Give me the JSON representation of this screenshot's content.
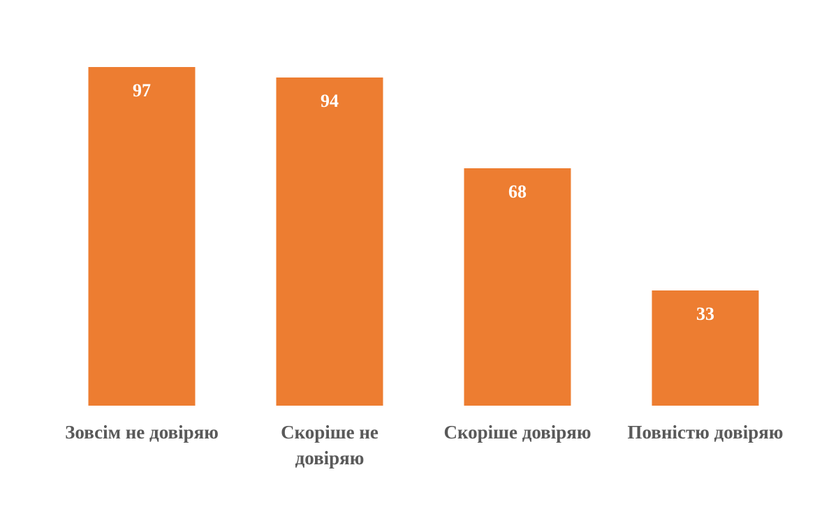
{
  "chart_data": {
    "type": "bar",
    "categories": [
      [
        "Зовсім не довіряю"
      ],
      [
        "Скоріше не",
        "довіряю"
      ],
      [
        "Скоріше довіряю"
      ],
      [
        "Повністю довіряю"
      ]
    ],
    "values": [
      97,
      94,
      68,
      33
    ],
    "value_labels": [
      "97",
      "94",
      "68",
      "33"
    ],
    "ylim": [
      0,
      100
    ],
    "grid": false,
    "legend": "none",
    "bar_color": "#ED7D31",
    "value_label_color": "#FFFFFF",
    "category_label_color": "#595959"
  }
}
